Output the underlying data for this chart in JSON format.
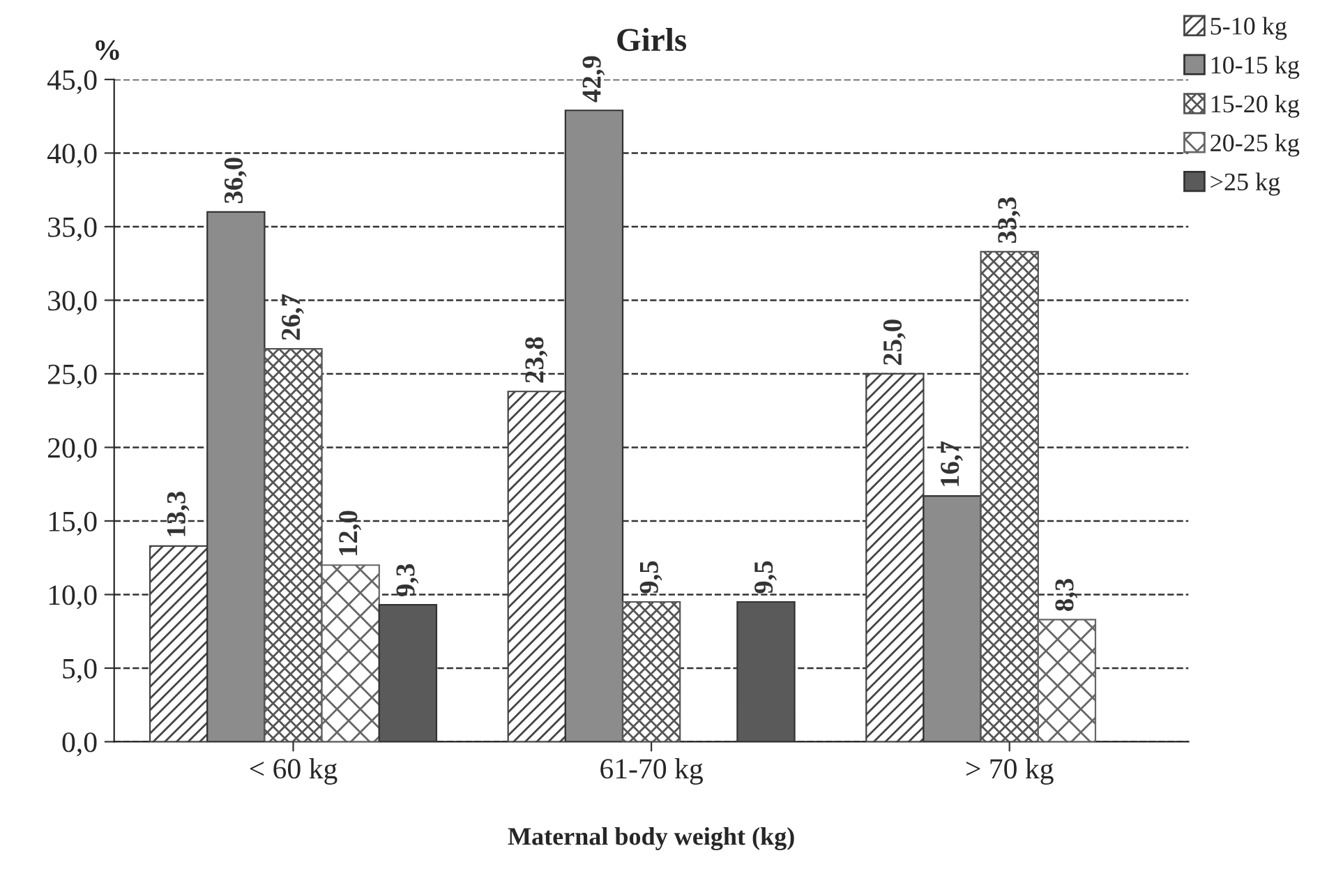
{
  "chart_data": {
    "type": "bar",
    "title": "Girls",
    "xlabel": "Maternal body weight (kg)",
    "ylabel": "%",
    "categories": [
      "< 60 kg",
      "61-70 kg",
      "> 70 kg"
    ],
    "series": [
      {
        "name": "5-10 kg",
        "color": "#444444",
        "values": [
          13.3,
          23.8,
          25.0
        ],
        "value_labels": [
          "13,3",
          "23,8",
          "25,0"
        ]
      },
      {
        "name": "10-15 kg",
        "color": "#8c8c8c",
        "values": [
          36.0,
          42.9,
          16.7
        ],
        "value_labels": [
          "36,0",
          "42,9",
          "16,7"
        ]
      },
      {
        "name": "15-20 kg",
        "color": "#555555",
        "values": [
          26.7,
          9.5,
          33.3
        ],
        "value_labels": [
          "26,7",
          "9,5",
          "33,3"
        ]
      },
      {
        "name": "20-25 kg",
        "color": "#666666",
        "values": [
          12.0,
          null,
          8.3
        ],
        "value_labels": [
          "12,0",
          null,
          "8,3"
        ]
      },
      {
        "name": ">25 kg",
        "color": "#5a5a5a",
        "values": [
          9.3,
          9.5,
          null
        ],
        "value_labels": [
          "9,3",
          "9,5",
          null
        ]
      }
    ],
    "ylim": [
      0,
      45
    ],
    "yticks": [
      {
        "value": 0,
        "label": "0,0"
      },
      {
        "value": 5,
        "label": "5,0"
      },
      {
        "value": 10,
        "label": "10,0"
      },
      {
        "value": 15,
        "label": "15,0"
      },
      {
        "value": 20,
        "label": "20,0"
      },
      {
        "value": 25,
        "label": "25,0"
      },
      {
        "value": 30,
        "label": "30,0"
      },
      {
        "value": 35,
        "label": "35,0"
      },
      {
        "value": 40,
        "label": "40,0"
      },
      {
        "value": 45,
        "label": "45,0"
      }
    ],
    "grid": "y",
    "legend": "top right"
  }
}
